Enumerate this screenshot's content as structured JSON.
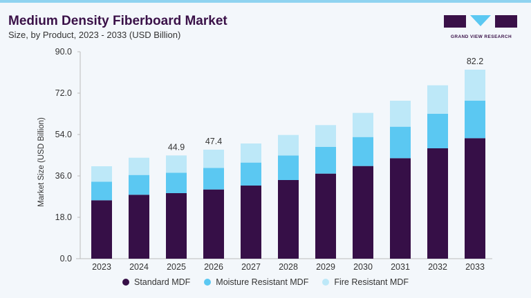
{
  "header": {
    "title": "Medium Density Fiberboard Market",
    "subtitle": "Size, by Product, 2023 - 2033 (USD Billion)"
  },
  "logo": {
    "text": "GRAND VIEW RESEARCH"
  },
  "chart_data": {
    "type": "bar",
    "stacked": true,
    "title": "Medium Density Fiberboard Market",
    "subtitle": "Size, by Product, 2023 - 2033 (USD Billion)",
    "xlabel": "",
    "ylabel": "Market Size (USD Billion)",
    "ylim": [
      0,
      90
    ],
    "yticks": [
      "0.0",
      "18.0",
      "36.0",
      "54.0",
      "72.0",
      "90.0"
    ],
    "grid": false,
    "legend_position": "bottom",
    "categories": [
      "2023",
      "2024",
      "2025",
      "2026",
      "2027",
      "2028",
      "2029",
      "2030",
      "2031",
      "2032",
      "2033"
    ],
    "series": [
      {
        "name": "Standard MDF",
        "color": "#360f47",
        "values": [
          25.4,
          27.8,
          28.5,
          30.1,
          31.8,
          34.2,
          37.0,
          40.3,
          43.7,
          48.0,
          52.4
        ]
      },
      {
        "name": "Moisture Resistant MDF",
        "color": "#5bc8f2",
        "values": [
          8.1,
          8.6,
          8.9,
          9.4,
          10.0,
          10.7,
          11.6,
          12.6,
          13.7,
          15.0,
          16.3
        ]
      },
      {
        "name": "Fire Resistant MDF",
        "color": "#bde8f8",
        "values": [
          6.7,
          7.5,
          7.5,
          7.9,
          8.3,
          8.9,
          9.5,
          10.5,
          11.3,
          12.4,
          13.5
        ]
      }
    ],
    "data_labels": {
      "2025": "44.9",
      "2026": "47.4",
      "2033": "82.2"
    }
  }
}
